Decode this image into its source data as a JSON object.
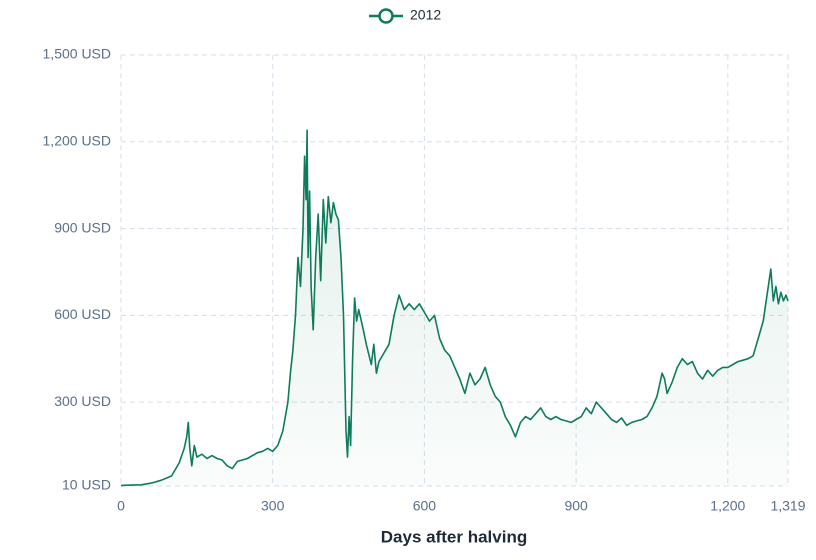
{
  "chart_data": {
    "type": "line",
    "x_label": "Days after halving",
    "xlim": [
      0,
      1319
    ],
    "ylim": [
      10,
      1500
    ],
    "xticks": [
      0,
      300,
      600,
      900,
      {
        "value": 1200,
        "label": "1,200"
      },
      {
        "value": 1319,
        "label": "1,319"
      }
    ],
    "yticks": [
      {
        "value": 10,
        "label": "10 USD"
      },
      {
        "value": 300,
        "label": "300 USD"
      },
      {
        "value": 600,
        "label": "600 USD"
      },
      {
        "value": 900,
        "label": "900 USD"
      },
      {
        "value": 1200,
        "label": "1,200 USD"
      },
      {
        "value": 1500,
        "label": "1,500 USD"
      }
    ],
    "grid": true,
    "x": [
      0,
      20,
      40,
      60,
      80,
      100,
      115,
      125,
      130,
      133,
      136,
      140,
      145,
      150,
      160,
      170,
      180,
      190,
      200,
      210,
      220,
      230,
      240,
      250,
      260,
      270,
      280,
      290,
      300,
      310,
      320,
      330,
      335,
      340,
      345,
      350,
      355,
      360,
      363,
      366,
      368,
      370,
      373,
      376,
      380,
      385,
      390,
      395,
      400,
      405,
      410,
      415,
      420,
      425,
      430,
      435,
      440,
      445,
      448,
      451,
      454,
      458,
      462,
      466,
      470,
      478,
      485,
      495,
      500,
      505,
      510,
      520,
      530,
      540,
      550,
      560,
      570,
      580,
      590,
      600,
      610,
      620,
      630,
      640,
      650,
      660,
      670,
      680,
      690,
      700,
      710,
      720,
      730,
      740,
      750,
      760,
      770,
      780,
      790,
      800,
      810,
      820,
      830,
      840,
      850,
      860,
      870,
      880,
      890,
      900,
      910,
      920,
      930,
      940,
      950,
      960,
      970,
      980,
      990,
      1000,
      1010,
      1020,
      1030,
      1040,
      1050,
      1060,
      1070,
      1075,
      1080,
      1090,
      1100,
      1110,
      1120,
      1130,
      1140,
      1150,
      1160,
      1170,
      1180,
      1190,
      1200,
      1210,
      1220,
      1230,
      1240,
      1250,
      1260,
      1270,
      1280,
      1285,
      1290,
      1295,
      1300,
      1305,
      1310,
      1315,
      1319
    ],
    "series": [
      {
        "name": "2012",
        "color": "#0e7c5a",
        "values": [
          12,
          13,
          14,
          20,
          30,
          45,
          90,
          140,
          180,
          230,
          140,
          80,
          150,
          110,
          120,
          105,
          115,
          105,
          100,
          80,
          70,
          95,
          100,
          105,
          115,
          125,
          130,
          140,
          130,
          150,
          200,
          300,
          400,
          480,
          600,
          800,
          700,
          900,
          1150,
          1000,
          1240,
          800,
          1030,
          700,
          550,
          800,
          950,
          720,
          1000,
          850,
          1010,
          920,
          990,
          950,
          930,
          800,
          600,
          200,
          110,
          250,
          150,
          450,
          660,
          580,
          620,
          560,
          500,
          430,
          500,
          400,
          440,
          470,
          500,
          600,
          670,
          620,
          640,
          620,
          640,
          610,
          580,
          600,
          520,
          480,
          460,
          420,
          380,
          330,
          400,
          360,
          380,
          420,
          360,
          320,
          300,
          250,
          220,
          180,
          230,
          250,
          240,
          260,
          280,
          250,
          240,
          250,
          240,
          235,
          230,
          240,
          250,
          280,
          260,
          300,
          280,
          260,
          240,
          230,
          245,
          220,
          230,
          235,
          240,
          250,
          280,
          320,
          400,
          380,
          330,
          370,
          420,
          450,
          430,
          440,
          400,
          380,
          410,
          390,
          410,
          420,
          420,
          430,
          440,
          445,
          450,
          460,
          520,
          580,
          700,
          760,
          650,
          700,
          640,
          680,
          650,
          670,
          650
        ]
      }
    ]
  }
}
